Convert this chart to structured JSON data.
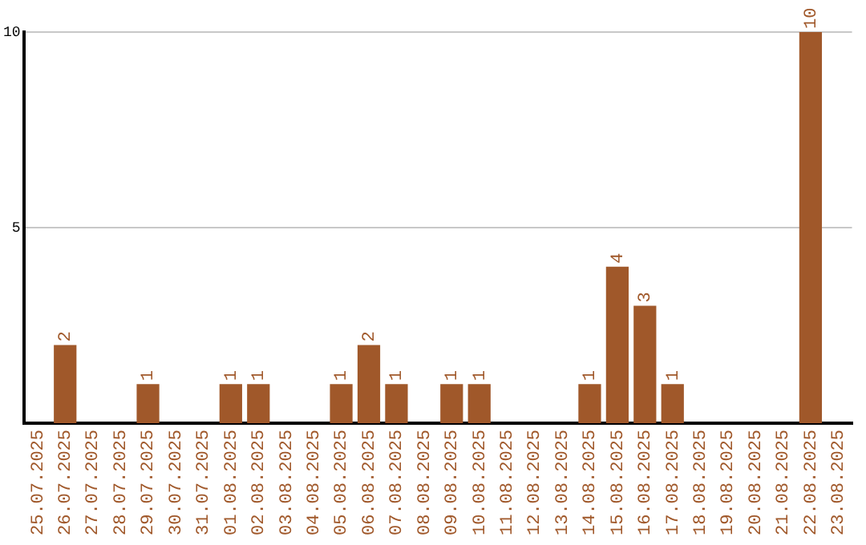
{
  "chart_data": {
    "type": "bar",
    "categories": [
      "25.07.2025",
      "26.07.2025",
      "27.07.2025",
      "28.07.2025",
      "29.07.2025",
      "30.07.2025",
      "31.07.2025",
      "01.08.2025",
      "02.08.2025",
      "03.08.2025",
      "04.08.2025",
      "05.08.2025",
      "06.08.2025",
      "07.08.2025",
      "08.08.2025",
      "09.08.2025",
      "10.08.2025",
      "11.08.2025",
      "12.08.2025",
      "13.08.2025",
      "14.08.2025",
      "15.08.2025",
      "16.08.2025",
      "17.08.2025",
      "18.08.2025",
      "19.08.2025",
      "20.08.2025",
      "21.08.2025",
      "22.08.2025",
      "23.08.2025"
    ],
    "values": [
      0,
      2,
      0,
      0,
      1,
      0,
      0,
      1,
      1,
      0,
      0,
      1,
      2,
      1,
      0,
      1,
      1,
      0,
      0,
      0,
      1,
      4,
      3,
      1,
      0,
      0,
      0,
      0,
      10,
      0
    ],
    "value_labels": [
      null,
      "2",
      null,
      null,
      "1",
      null,
      null,
      "1",
      "1",
      null,
      null,
      "1",
      "2",
      "1",
      null,
      "1",
      "1",
      null,
      null,
      null,
      "1",
      "4",
      "3",
      "1",
      null,
      null,
      null,
      null,
      "10",
      null
    ],
    "color": "#a0582a",
    "ylim": [
      0,
      10
    ],
    "yticks": [
      5,
      10
    ],
    "grid": "y"
  }
}
